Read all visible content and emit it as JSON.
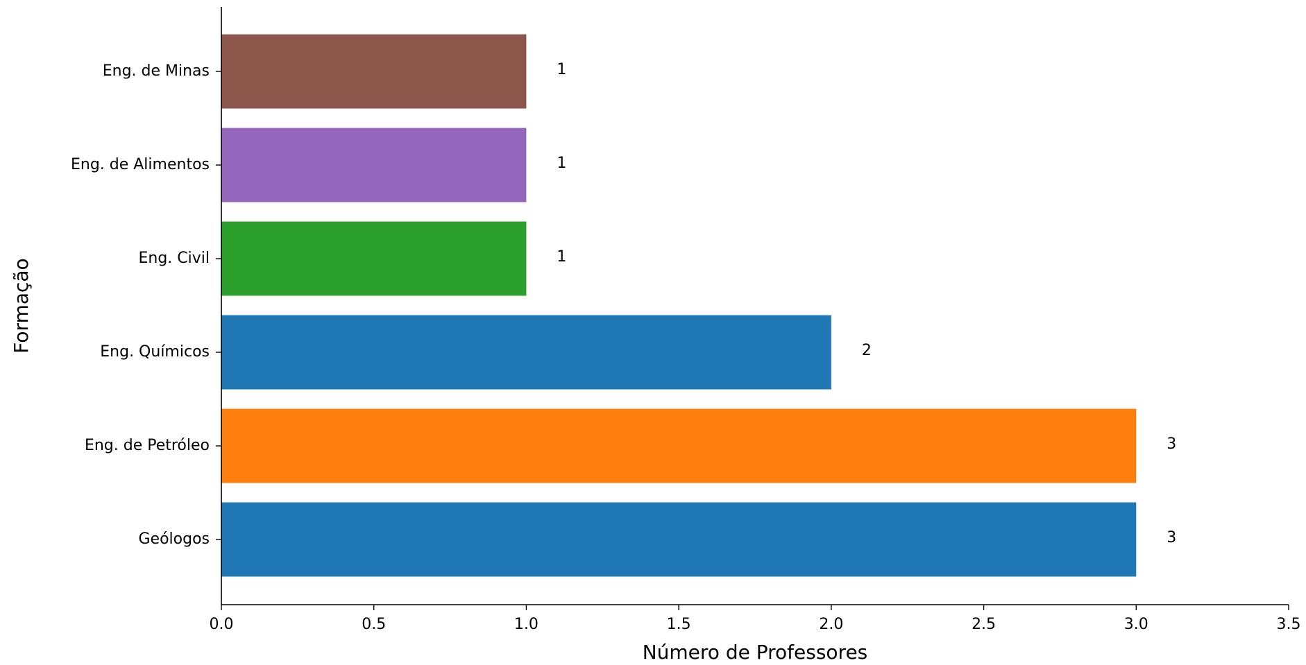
{
  "chart_data": {
    "type": "bar",
    "orientation": "horizontal",
    "title": "",
    "xlabel": "Número de Professores",
    "ylabel": "Formação",
    "categories": [
      "Geólogos",
      "Eng. de Petróleo",
      "Eng. Químicos",
      "Eng. Civil",
      "Eng. de Alimentos",
      "Eng. de Minas"
    ],
    "values": [
      3,
      3,
      2,
      1,
      1,
      1
    ],
    "value_labels": [
      "3",
      "3",
      "2",
      "1",
      "1",
      "1"
    ],
    "colors": [
      "#1f77b4",
      "#ff7f0e",
      "#1f77b4",
      "#2ca02c",
      "#9467bd",
      "#8c564b"
    ],
    "xlim": [
      0,
      3.5
    ],
    "xticks": [
      0,
      0.5,
      1,
      1.5,
      2,
      2.5,
      3,
      3.5
    ],
    "xtick_labels": [
      "0.0",
      "0.5",
      "1.0",
      "1.5",
      "2.0",
      "2.5",
      "3.0",
      "3.5"
    ],
    "grid": false,
    "legend": false,
    "spines": [
      "left",
      "bottom"
    ]
  }
}
